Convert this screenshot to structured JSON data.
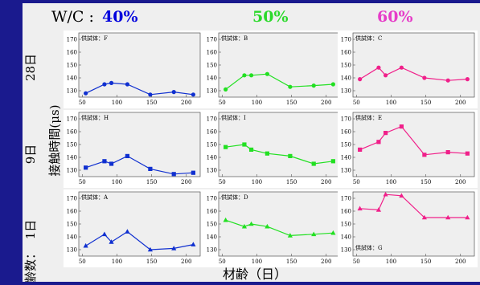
{
  "header": {
    "wc_prefix": "W/C : ",
    "wc_values": [
      {
        "label": "40%",
        "color": "#0000dd"
      },
      {
        "label": "50%",
        "color": "#2bd92b"
      },
      {
        "label": "60%",
        "color": "#e63cc8"
      }
    ]
  },
  "row_labels": [
    "28日",
    "9日",
    "1日"
  ],
  "age_axis_label": "材齢数：",
  "ylabel": "接触時間(μs)",
  "xlabel": "材齢（日）",
  "colors": {
    "background": "#1a1a8e",
    "plot_background": "#efefef",
    "panel_background": "#ffffff",
    "series_40": "#1030d0",
    "series_50": "#22e022",
    "series_60": "#f0208a"
  },
  "chart_data": [
    {
      "type": "line",
      "specimen": "供試体：F",
      "marker": "circle",
      "color": "#1030d0",
      "x": [
        55,
        82,
        92,
        115,
        148,
        182,
        210
      ],
      "values": [
        128,
        135,
        136,
        135,
        127,
        129,
        127
      ],
      "xlim": [
        45,
        220
      ],
      "ylim": [
        125,
        175
      ],
      "xticks": [
        50,
        100,
        150,
        200
      ],
      "yticks": [
        130,
        140,
        150,
        160,
        170
      ],
      "label_pos": "top-left"
    },
    {
      "type": "line",
      "specimen": "供試体：B",
      "marker": "circle",
      "color": "#22e022",
      "x": [
        55,
        82,
        92,
        115,
        148,
        182,
        210
      ],
      "values": [
        131,
        142,
        142,
        143,
        133,
        134,
        135
      ],
      "xlim": [
        45,
        220
      ],
      "ylim": [
        125,
        175
      ],
      "xticks": [
        50,
        100,
        150,
        200
      ],
      "yticks": [
        130,
        140,
        150,
        160,
        170
      ],
      "label_pos": "top-left"
    },
    {
      "type": "line",
      "specimen": "供試体：C",
      "marker": "circle",
      "color": "#f0208a",
      "x": [
        55,
        82,
        92,
        115,
        148,
        182,
        210
      ],
      "values": [
        139,
        148,
        142,
        148,
        140,
        138,
        139
      ],
      "xlim": [
        45,
        220
      ],
      "ylim": [
        125,
        175
      ],
      "xticks": [
        50,
        100,
        150,
        200
      ],
      "yticks": [
        130,
        140,
        150,
        160,
        170
      ],
      "label_pos": "top-left"
    },
    {
      "type": "line",
      "specimen": "供試体：H",
      "marker": "square",
      "color": "#1030d0",
      "x": [
        55,
        82,
        92,
        115,
        148,
        182,
        210
      ],
      "values": [
        132,
        137,
        135,
        141,
        131,
        127,
        128
      ],
      "xlim": [
        45,
        220
      ],
      "ylim": [
        125,
        175
      ],
      "xticks": [
        50,
        100,
        150,
        200
      ],
      "yticks": [
        130,
        140,
        150,
        160,
        170
      ],
      "label_pos": "top-left"
    },
    {
      "type": "line",
      "specimen": "供試体：I",
      "marker": "square",
      "color": "#22e022",
      "x": [
        55,
        82,
        92,
        115,
        148,
        182,
        210
      ],
      "values": [
        148,
        150,
        146,
        143,
        141,
        135,
        137
      ],
      "xlim": [
        45,
        220
      ],
      "ylim": [
        125,
        175
      ],
      "xticks": [
        50,
        100,
        150,
        200
      ],
      "yticks": [
        130,
        140,
        150,
        160,
        170
      ],
      "label_pos": "top-left"
    },
    {
      "type": "line",
      "specimen": "供試体：E",
      "marker": "square",
      "color": "#f0208a",
      "x": [
        55,
        82,
        92,
        115,
        148,
        182,
        210
      ],
      "values": [
        146,
        152,
        159,
        164,
        142,
        144,
        143
      ],
      "xlim": [
        45,
        220
      ],
      "ylim": [
        125,
        175
      ],
      "xticks": [
        50,
        100,
        150,
        200
      ],
      "yticks": [
        130,
        140,
        150,
        160,
        170
      ],
      "label_pos": "top-left"
    },
    {
      "type": "line",
      "specimen": "供試体：A",
      "marker": "triangle",
      "color": "#1030d0",
      "x": [
        55,
        82,
        92,
        115,
        148,
        182,
        210
      ],
      "values": [
        133,
        142,
        136,
        144,
        130,
        131,
        134
      ],
      "xlim": [
        45,
        220
      ],
      "ylim": [
        125,
        175
      ],
      "xticks": [
        50,
        100,
        150,
        200
      ],
      "yticks": [
        130,
        140,
        150,
        160,
        170
      ],
      "label_pos": "top-left"
    },
    {
      "type": "line",
      "specimen": "供試体：D",
      "marker": "triangle",
      "color": "#22e022",
      "x": [
        55,
        82,
        92,
        115,
        148,
        182,
        210
      ],
      "values": [
        153,
        148,
        150,
        148,
        141,
        142,
        143
      ],
      "xlim": [
        45,
        220
      ],
      "ylim": [
        125,
        175
      ],
      "xticks": [
        50,
        100,
        150,
        200
      ],
      "yticks": [
        130,
        140,
        150,
        160,
        170
      ],
      "label_pos": "top-left"
    },
    {
      "type": "line",
      "specimen": "供試体：G",
      "marker": "triangle",
      "color": "#f0208a",
      "x": [
        55,
        82,
        92,
        115,
        148,
        182,
        210
      ],
      "values": [
        162,
        161,
        173,
        172,
        155,
        155,
        155
      ],
      "xlim": [
        45,
        220
      ],
      "ylim": [
        125,
        175
      ],
      "xticks": [
        50,
        100,
        150,
        200
      ],
      "yticks": [
        130,
        140,
        150,
        160,
        170
      ],
      "label_pos": "bottom-left"
    }
  ]
}
